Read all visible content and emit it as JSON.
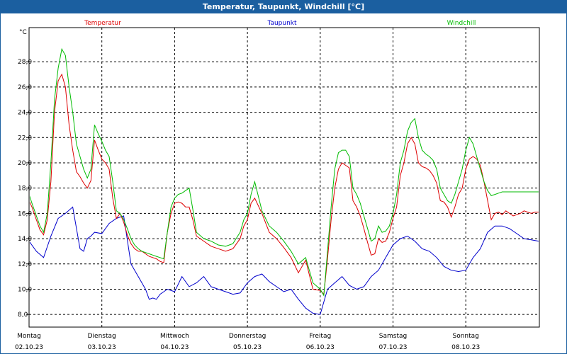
{
  "window": {
    "title": "Temperatur, Taupunkt, Windchill [°C]"
  },
  "chart_data": {
    "type": "line",
    "unit_label": "°C",
    "ylim": [
      7.0,
      30.7
    ],
    "yticks": [
      8.0,
      10.0,
      12.0,
      14.0,
      16.0,
      18.0,
      20.0,
      22.0,
      24.0,
      26.0,
      28.0
    ],
    "ytick_labels": [
      "8,0",
      "10,0",
      "12,0",
      "14,0",
      "16,0",
      "18,0",
      "20,0",
      "22,0",
      "24,0",
      "26,0",
      "28,0"
    ],
    "grid": true,
    "xlim": [
      0,
      7
    ],
    "x_day_labels": [
      {
        "day": "Montag",
        "date": "02.10.23"
      },
      {
        "day": "Dienstag",
        "date": "03.10.23"
      },
      {
        "day": "Mittwoch",
        "date": "04.10.23"
      },
      {
        "day": "Donnerstag",
        "date": "05.10.23"
      },
      {
        "day": "Freitag",
        "date": "06.10.23"
      },
      {
        "day": "Samstag",
        "date": "07.10.23"
      },
      {
        "day": "Sonntag",
        "date": "08.10.23"
      }
    ],
    "series": [
      {
        "name": "Temperatur",
        "color": "#dd0000",
        "x": [
          0,
          0.04,
          0.1,
          0.15,
          0.2,
          0.25,
          0.3,
          0.35,
          0.4,
          0.45,
          0.5,
          0.55,
          0.6,
          0.65,
          0.7,
          0.75,
          0.8,
          0.85,
          0.9,
          0.95,
          1.0,
          1.05,
          1.1,
          1.15,
          1.2,
          1.25,
          1.3,
          1.35,
          1.4,
          1.45,
          1.5,
          1.55,
          1.6,
          1.65,
          1.7,
          1.75,
          1.8,
          1.85,
          1.9,
          1.95,
          2.0,
          2.05,
          2.1,
          2.15,
          2.2,
          2.25,
          2.3,
          2.4,
          2.5,
          2.6,
          2.7,
          2.8,
          2.9,
          2.95,
          3.0,
          3.05,
          3.1,
          3.2,
          3.3,
          3.4,
          3.5,
          3.6,
          3.7,
          3.8,
          3.9,
          4.0,
          4.05,
          4.1,
          4.15,
          4.2,
          4.25,
          4.3,
          4.35,
          4.4,
          4.45,
          4.5,
          4.55,
          4.6,
          4.65,
          4.7,
          4.75,
          4.8,
          4.85,
          4.9,
          4.95,
          5.0,
          5.05,
          5.1,
          5.15,
          5.2,
          5.25,
          5.3,
          5.35,
          5.4,
          5.45,
          5.5,
          5.55,
          5.6,
          5.65,
          5.7,
          5.75,
          5.8,
          5.85,
          5.9,
          5.95,
          6.0,
          6.05,
          6.1,
          6.15,
          6.2,
          6.25,
          6.3,
          6.35,
          6.4,
          6.45,
          6.5,
          6.55,
          6.6,
          6.65,
          6.7,
          6.75,
          6.8,
          6.85,
          6.9,
          6.95,
          7.0
        ],
        "values": [
          17.0,
          16.5,
          15.5,
          14.7,
          14.3,
          15.5,
          18.5,
          24.0,
          26.5,
          27.0,
          26.0,
          23.0,
          21.0,
          19.3,
          18.9,
          18.4,
          18.0,
          18.6,
          21.8,
          21.0,
          20.3,
          20.0,
          19.5,
          17.2,
          15.6,
          16.0,
          15.3,
          14.3,
          13.6,
          13.2,
          13.0,
          13.0,
          12.8,
          12.6,
          12.5,
          12.4,
          12.2,
          12.1,
          14.5,
          16.0,
          16.8,
          16.9,
          16.8,
          16.5,
          16.5,
          15.5,
          14.2,
          13.8,
          13.4,
          13.2,
          13.0,
          13.2,
          14.0,
          15.0,
          15.5,
          16.8,
          17.2,
          16.0,
          14.5,
          14.0,
          13.3,
          12.5,
          11.3,
          12.3,
          10.0,
          9.9,
          9.6,
          12.4,
          15.5,
          18.0,
          19.5,
          20.0,
          19.8,
          19.6,
          17.0,
          16.5,
          15.8,
          14.8,
          13.7,
          12.7,
          12.8,
          14.0,
          13.7,
          13.8,
          14.5,
          15.6,
          16.5,
          19.0,
          20.0,
          21.5,
          22.0,
          21.5,
          20.0,
          19.7,
          19.6,
          19.4,
          19.0,
          18.4,
          17.0,
          16.9,
          16.5,
          15.7,
          16.5,
          17.5,
          18.0,
          19.5,
          20.3,
          20.5,
          20.3,
          19.8,
          18.5,
          17.0,
          15.5,
          16.0,
          16.1,
          15.9,
          16.2,
          16.0,
          15.8,
          15.9,
          16.0,
          16.2,
          16.1,
          16.0,
          16.1,
          16.1
        ],
        "note_visible_series_ends_near_x": 7.05
      },
      {
        "name": "Taupunkt",
        "color": "#0000cc",
        "x": [
          0,
          0.1,
          0.2,
          0.3,
          0.4,
          0.5,
          0.6,
          0.7,
          0.75,
          0.8,
          0.85,
          0.9,
          1.0,
          1.1,
          1.2,
          1.3,
          1.4,
          1.5,
          1.6,
          1.65,
          1.7,
          1.75,
          1.8,
          1.9,
          2.0,
          2.1,
          2.2,
          2.3,
          2.4,
          2.5,
          2.6,
          2.7,
          2.8,
          2.9,
          3.0,
          3.1,
          3.2,
          3.3,
          3.4,
          3.5,
          3.6,
          3.7,
          3.8,
          3.9,
          4.0,
          4.1,
          4.2,
          4.3,
          4.4,
          4.5,
          4.6,
          4.7,
          4.8,
          4.9,
          5.0,
          5.1,
          5.2,
          5.3,
          5.4,
          5.5,
          5.6,
          5.7,
          5.8,
          5.9,
          6.0,
          6.1,
          6.2,
          6.3,
          6.4,
          6.5,
          6.6,
          6.7,
          6.8,
          6.9,
          7.0
        ],
        "values": [
          13.8,
          13.0,
          12.5,
          14.2,
          15.6,
          16.0,
          16.5,
          13.2,
          13.0,
          14.0,
          14.2,
          14.5,
          14.4,
          15.2,
          15.6,
          15.8,
          12.0,
          11.0,
          10.0,
          9.2,
          9.3,
          9.2,
          9.6,
          10.0,
          9.8,
          11.0,
          10.2,
          10.5,
          11.0,
          10.2,
          10.0,
          9.8,
          9.6,
          9.7,
          10.5,
          11.0,
          11.2,
          10.6,
          10.2,
          9.8,
          10.0,
          9.2,
          8.5,
          8.1,
          8.0,
          10.0,
          10.5,
          11.0,
          10.3,
          10.0,
          10.2,
          11.0,
          11.5,
          12.5,
          13.5,
          14.0,
          14.2,
          13.8,
          13.2,
          13.0,
          12.5,
          11.8,
          11.5,
          11.4,
          11.5,
          12.5,
          13.2,
          14.5,
          15.0,
          15.0,
          14.8,
          14.4,
          14.0,
          13.9,
          13.8
        ],
        "note_visible_series_ends_near_x": 7.05
      },
      {
        "name": "Windchill",
        "color": "#00bb00",
        "x": [
          0,
          0.04,
          0.1,
          0.15,
          0.2,
          0.25,
          0.3,
          0.35,
          0.4,
          0.45,
          0.5,
          0.55,
          0.6,
          0.65,
          0.7,
          0.75,
          0.8,
          0.85,
          0.9,
          0.95,
          1.0,
          1.05,
          1.1,
          1.15,
          1.2,
          1.25,
          1.3,
          1.35,
          1.4,
          1.45,
          1.5,
          1.55,
          1.6,
          1.65,
          1.7,
          1.75,
          1.8,
          1.85,
          1.9,
          1.95,
          2.0,
          2.05,
          2.1,
          2.15,
          2.2,
          2.25,
          2.3,
          2.4,
          2.5,
          2.6,
          2.7,
          2.8,
          2.9,
          2.95,
          3.0,
          3.05,
          3.1,
          3.2,
          3.3,
          3.4,
          3.5,
          3.6,
          3.7,
          3.8,
          3.9,
          4.0,
          4.05,
          4.1,
          4.15,
          4.2,
          4.25,
          4.3,
          4.35,
          4.4,
          4.45,
          4.5,
          4.55,
          4.6,
          4.65,
          4.7,
          4.75,
          4.8,
          4.85,
          4.9,
          4.95,
          5.0,
          5.05,
          5.1,
          5.15,
          5.2,
          5.25,
          5.3,
          5.35,
          5.4,
          5.45,
          5.5,
          5.55,
          5.6,
          5.65,
          5.7,
          5.75,
          5.8,
          5.85,
          5.9,
          5.95,
          6.0,
          6.05,
          6.1,
          6.15,
          6.2,
          6.25,
          6.3,
          6.35,
          6.4,
          6.45,
          6.5,
          6.55,
          6.6,
          6.65,
          6.7,
          6.75,
          6.8,
          6.85,
          6.9,
          6.95,
          7.0
        ],
        "values": [
          17.5,
          16.8,
          15.8,
          15.0,
          14.5,
          16.0,
          20.0,
          25.0,
          27.5,
          29.0,
          28.5,
          26.0,
          24.0,
          21.5,
          20.5,
          19.5,
          18.8,
          19.5,
          23.0,
          22.3,
          21.7,
          21.0,
          20.5,
          18.5,
          16.2,
          16.0,
          15.5,
          14.8,
          14.0,
          13.5,
          13.2,
          13.0,
          12.9,
          12.8,
          12.7,
          12.6,
          12.5,
          12.4,
          14.5,
          16.5,
          17.2,
          17.5,
          17.6,
          17.8,
          18.0,
          16.3,
          14.5,
          14.0,
          13.8,
          13.5,
          13.4,
          13.6,
          14.5,
          15.5,
          16.0,
          17.5,
          18.5,
          16.2,
          15.0,
          14.5,
          13.8,
          13.0,
          12.0,
          12.5,
          10.5,
          10.0,
          9.5,
          13.0,
          16.5,
          19.5,
          20.8,
          21.0,
          21.0,
          20.5,
          18.0,
          17.5,
          16.8,
          15.8,
          14.8,
          13.8,
          14.0,
          15.0,
          14.5,
          14.6,
          15.0,
          16.0,
          17.5,
          20.0,
          21.0,
          22.5,
          23.2,
          23.5,
          22.0,
          21.0,
          20.7,
          20.5,
          20.2,
          19.5,
          18.0,
          17.5,
          17.0,
          16.8,
          17.5,
          18.5,
          19.5,
          21.0,
          22.0,
          21.5,
          20.5,
          19.5,
          18.5,
          17.8,
          17.4,
          17.5,
          17.6,
          17.7,
          17.7,
          17.7,
          17.7,
          17.7,
          17.7,
          17.7,
          17.7,
          17.7,
          17.7,
          17.7
        ],
        "note_visible_series_ends_near_x": 7.05
      }
    ]
  }
}
